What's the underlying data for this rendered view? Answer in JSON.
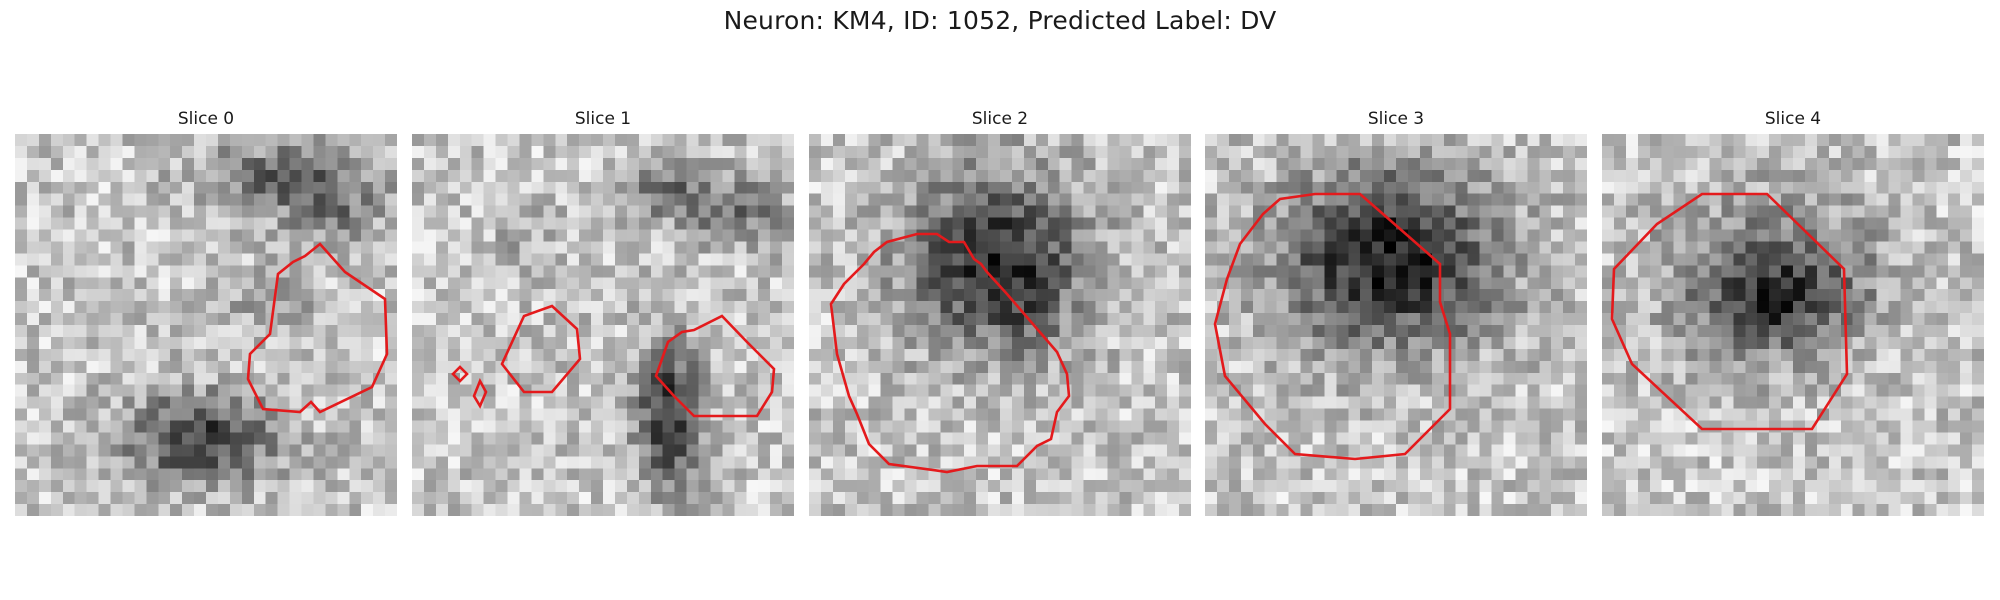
{
  "figure": {
    "title": "Neuron: KM4, ID: 1052, Predicted Label: DV"
  },
  "colors": {
    "contour": "#e41a1c",
    "colormap": "grayscale"
  },
  "panels": [
    {
      "title": "Slice 0"
    },
    {
      "title": "Slice 1"
    },
    {
      "title": "Slice 2"
    },
    {
      "title": "Slice 3"
    },
    {
      "title": "Slice 4"
    }
  ]
}
